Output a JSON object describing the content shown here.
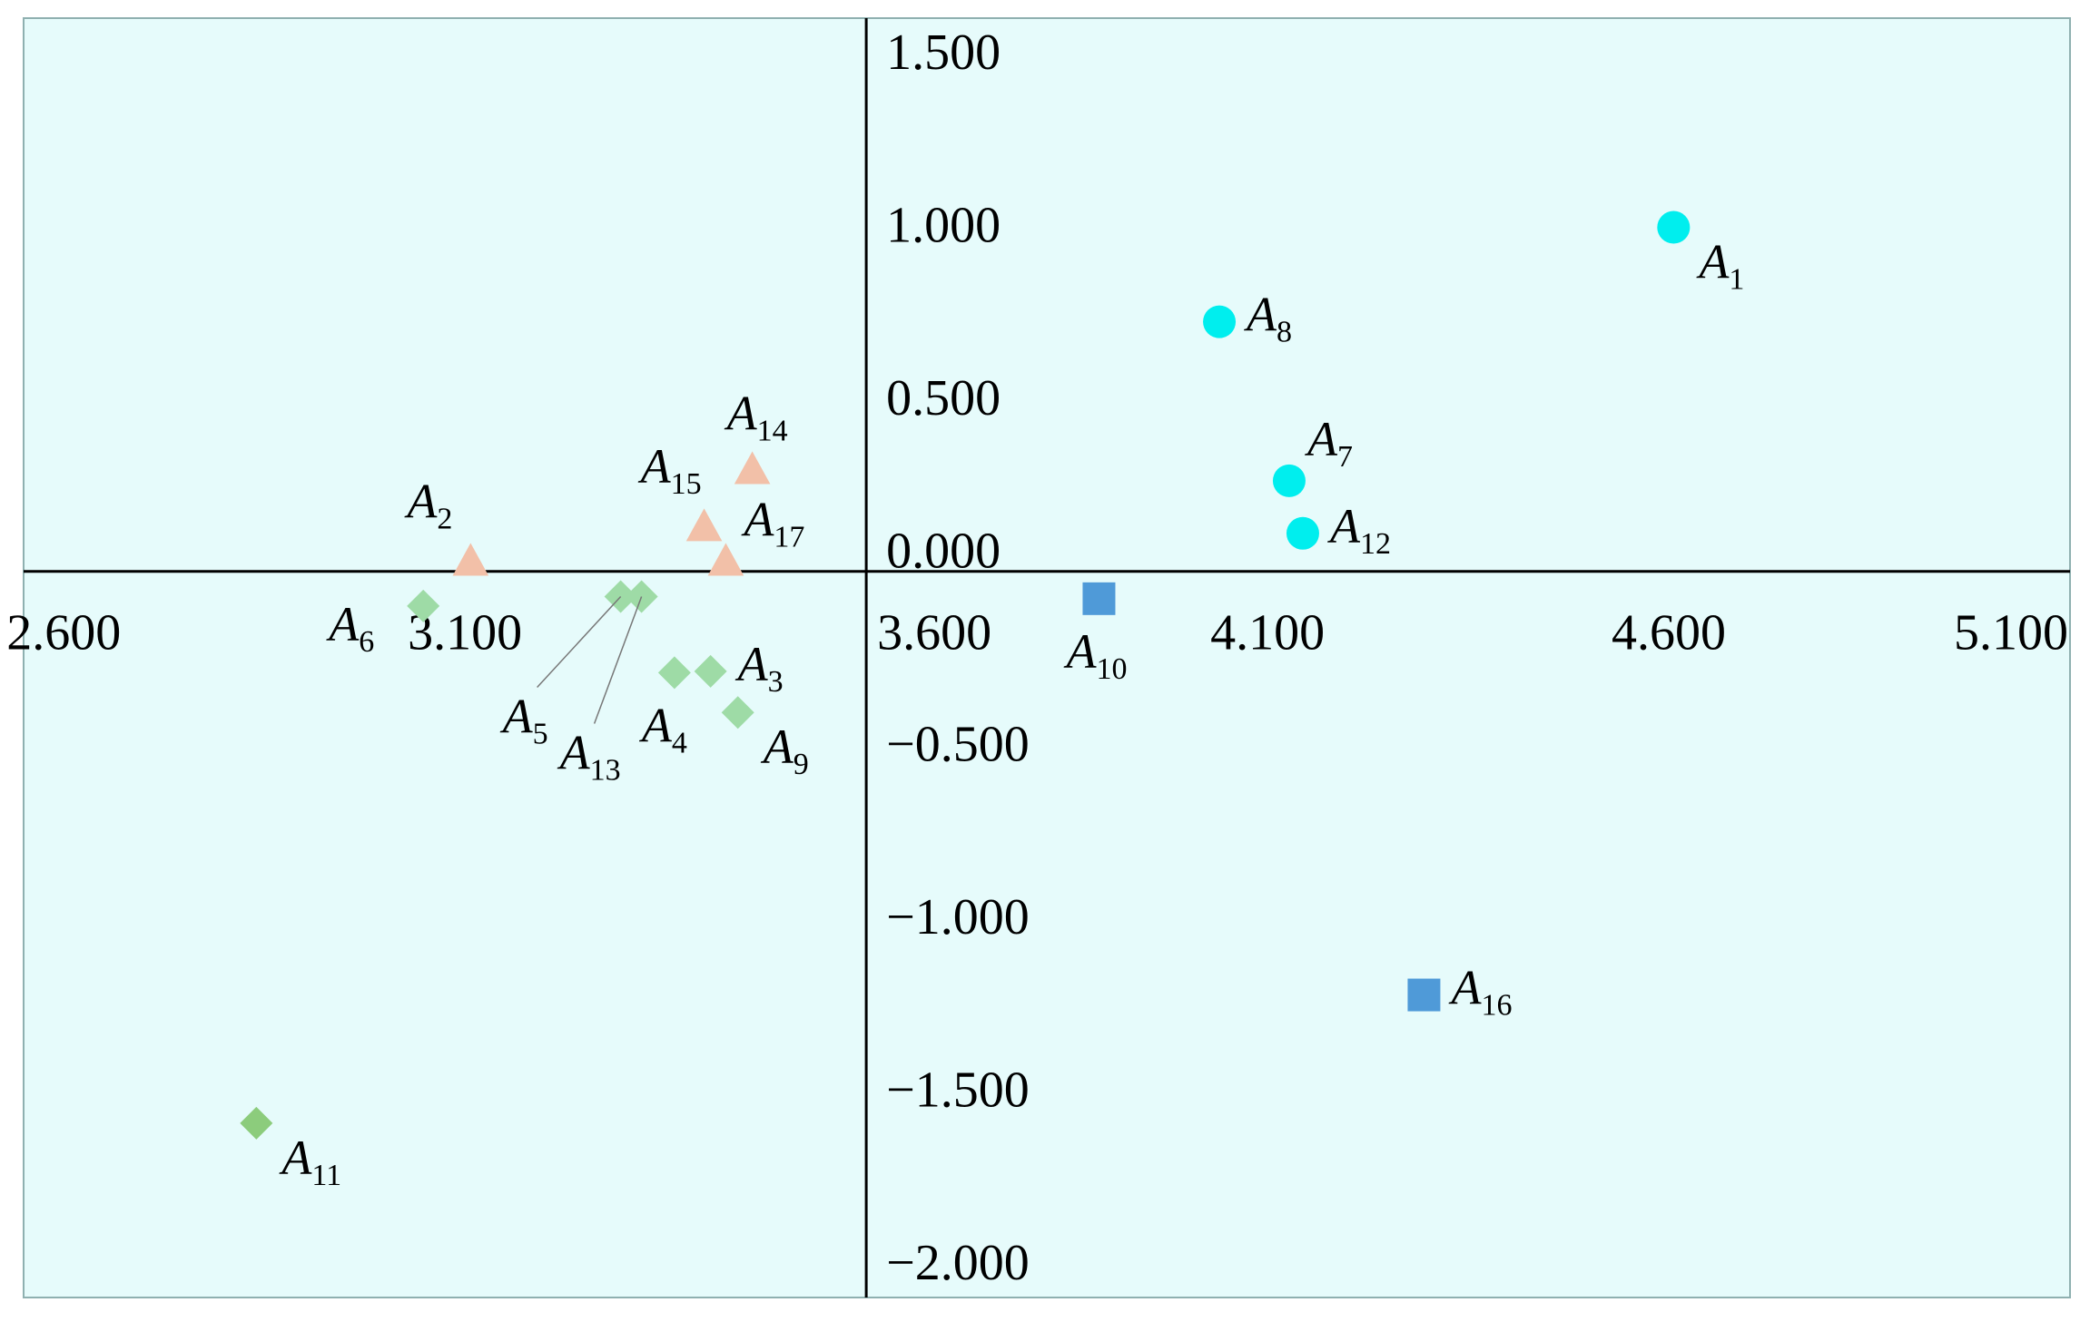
{
  "chart_data": {
    "type": "scatter",
    "xlim": [
      2.55,
      5.1
    ],
    "ylim": [
      -2.1,
      1.6
    ],
    "axis_cross": {
      "x": 3.6,
      "y": 0.0
    },
    "grid": false,
    "background_color": "#e6fbfb",
    "x_ticks": [
      {
        "value": 2.6,
        "label": "2.600"
      },
      {
        "value": 3.1,
        "label": "3.100"
      },
      {
        "value": 3.6,
        "label": "3.600"
      },
      {
        "value": 4.1,
        "label": "4.100"
      },
      {
        "value": 4.6,
        "label": "4.600"
      },
      {
        "value": 5.1,
        "label": "5.100"
      }
    ],
    "y_ticks": [
      {
        "value": 1.5,
        "label": "1.500"
      },
      {
        "value": 1.0,
        "label": "1.000"
      },
      {
        "value": 0.5,
        "label": "0.500"
      },
      {
        "value": 0.0,
        "label": "0.000"
      },
      {
        "value": -0.5,
        "label": "−0.500"
      },
      {
        "value": -1.0,
        "label": "−1.000"
      },
      {
        "value": -1.5,
        "label": "−1.500"
      },
      {
        "value": -2.0,
        "label": "−2.000"
      }
    ],
    "groups": [
      {
        "marker": "circle",
        "color": "#00eeee"
      },
      {
        "marker": "triangle",
        "color": "#f2c0a8"
      },
      {
        "marker": "diamond",
        "color": "#9edba6"
      },
      {
        "marker": "diamond",
        "color": "#8ccc7c"
      },
      {
        "marker": "square",
        "color": "#4f9ad8"
      }
    ],
    "points": [
      {
        "main": "A",
        "sub": "1",
        "x": 4.606,
        "y": 0.995,
        "group": 0,
        "label_pos": "below-right"
      },
      {
        "main": "A",
        "sub": "2",
        "x": 3.107,
        "y": 0.03,
        "group": 1,
        "label_pos": "above-left"
      },
      {
        "main": "A",
        "sub": "3",
        "x": 3.406,
        "y": -0.289,
        "group": 2,
        "label_pos": "right"
      },
      {
        "main": "A",
        "sub": "4",
        "x": 3.361,
        "y": -0.293,
        "group": 2,
        "label_pos": "below"
      },
      {
        "main": "A",
        "sub": "5",
        "x": 3.294,
        "y": -0.073,
        "group": 2,
        "label_pos": "leader-below-left"
      },
      {
        "main": "A",
        "sub": "6",
        "x": 3.048,
        "y": -0.1,
        "group": 2,
        "label_pos": "below-left"
      },
      {
        "main": "A",
        "sub": "7",
        "x": 4.127,
        "y": 0.262,
        "group": 0,
        "label_pos": "above-right"
      },
      {
        "main": "A",
        "sub": "8",
        "x": 4.04,
        "y": 0.722,
        "group": 0,
        "label_pos": "right"
      },
      {
        "main": "A",
        "sub": "9",
        "x": 3.44,
        "y": -0.408,
        "group": 2,
        "label_pos": "below-right"
      },
      {
        "main": "A",
        "sub": "10",
        "x": 3.89,
        "y": -0.079,
        "group": 4,
        "label_pos": "below"
      },
      {
        "main": "A",
        "sub": "11",
        "x": 2.84,
        "y": -1.596,
        "group": 3,
        "label_pos": "below-right"
      },
      {
        "main": "A",
        "sub": "12",
        "x": 4.144,
        "y": 0.11,
        "group": 0,
        "label_pos": "right"
      },
      {
        "main": "A",
        "sub": "13",
        "x": 3.32,
        "y": -0.073,
        "group": 2,
        "label_pos": "leader-below"
      },
      {
        "main": "A",
        "sub": "14",
        "x": 3.458,
        "y": 0.295,
        "group": 1,
        "label_pos": "above"
      },
      {
        "main": "A",
        "sub": "15",
        "x": 3.398,
        "y": 0.13,
        "group": 1,
        "label_pos": "above-left"
      },
      {
        "main": "A",
        "sub": "16",
        "x": 4.295,
        "y": -1.225,
        "group": 4,
        "label_pos": "right"
      },
      {
        "main": "A",
        "sub": "17",
        "x": 3.425,
        "y": 0.03,
        "group": 1,
        "label_pos": "above-right"
      }
    ]
  }
}
